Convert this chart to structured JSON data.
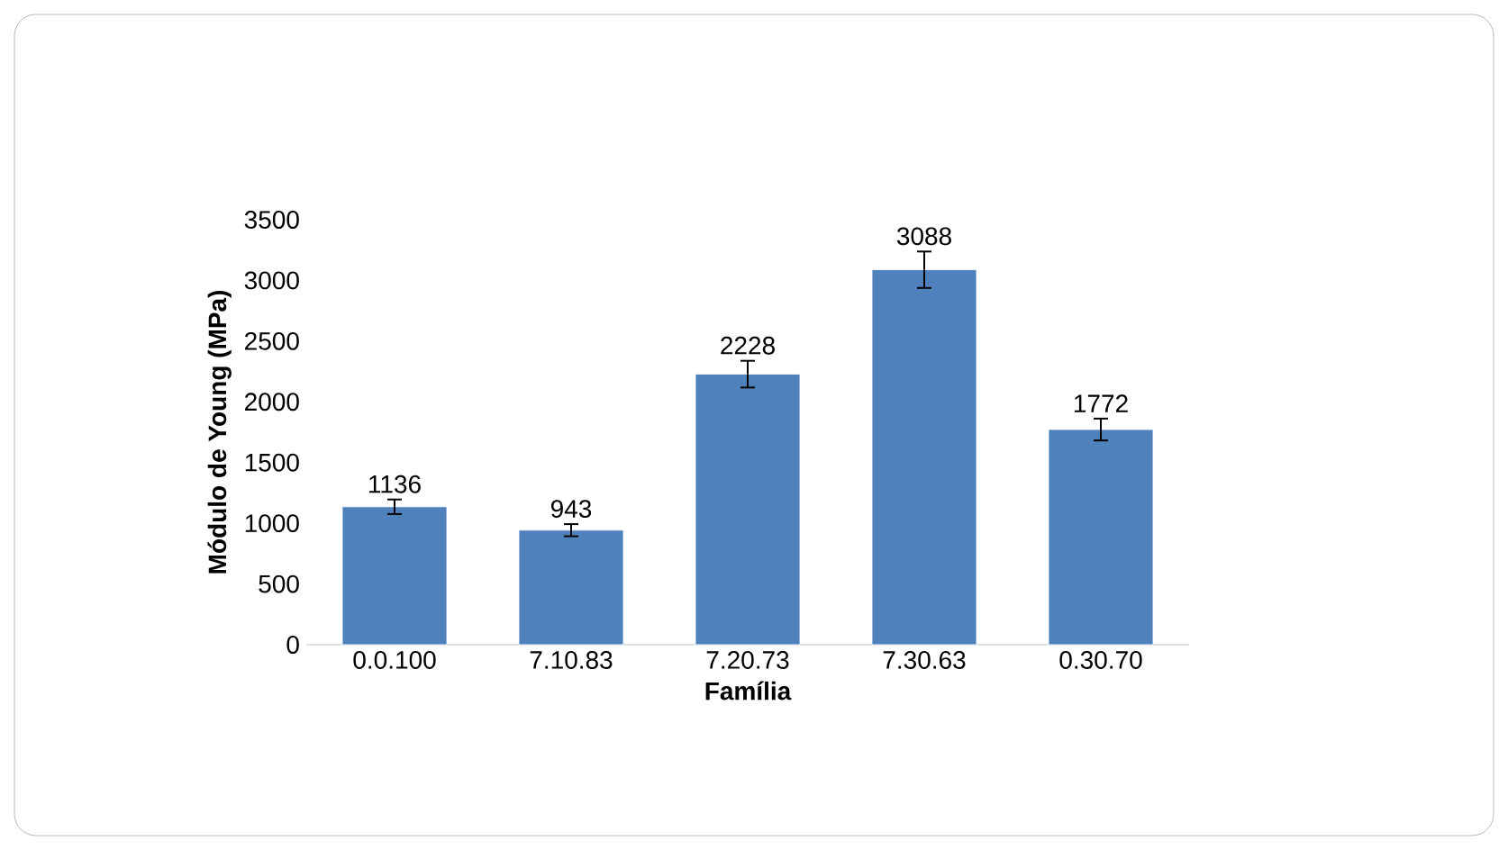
{
  "chart_data": {
    "type": "bar",
    "xlabel": "Família",
    "ylabel": "Módulo de Young (MPa)",
    "categories": [
      "0.0.100",
      "7.10.83",
      "7.20.73",
      "7.30.63",
      "0.30.70"
    ],
    "values": [
      1136,
      943,
      2228,
      3088,
      1772
    ],
    "errors": [
      60,
      50,
      110,
      150,
      90
    ],
    "color": "#4f81bd",
    "ylim": [
      0,
      3500
    ],
    "yticks": [
      0,
      500,
      1000,
      1500,
      2000,
      2500,
      3000,
      3500
    ],
    "data_labels": true
  }
}
